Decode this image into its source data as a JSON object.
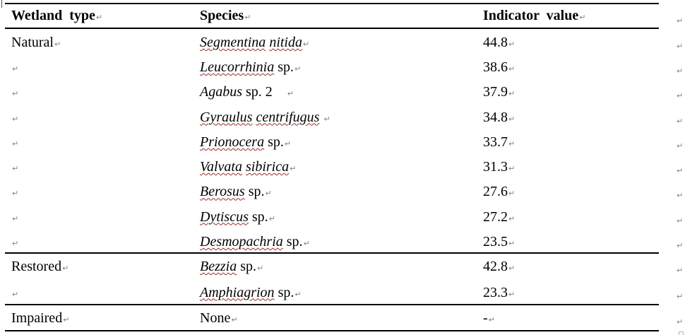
{
  "header": {
    "wetland_type": "Wetland type",
    "species": "Species",
    "indicator_value": "Indicator value"
  },
  "sections": [
    {
      "wetland_type": "Natural",
      "rows": [
        {
          "name": "Segmentina nitida",
          "rest": "",
          "value": "44.8"
        },
        {
          "name": "Leucorrhinia",
          "rest": " sp.",
          "value": "38.6"
        },
        {
          "name": "Agabus",
          "squiggle": false,
          "rest": " sp. 2",
          "trail": "    ",
          "value": "37.9"
        },
        {
          "name": "Gyraulus centrifugus",
          "rest": "",
          "trail": " ",
          "value": "34.8"
        },
        {
          "name": "Prionocera",
          "rest": " sp.",
          "value": "33.7"
        },
        {
          "name": "Valvata sibirica",
          "rest": "",
          "value": "31.3"
        },
        {
          "name": "Berosus",
          "rest": " sp.",
          "value": "27.6"
        },
        {
          "name": "Dytiscus",
          "rest": " sp.",
          "value": "27.2"
        },
        {
          "name": "Desmopachria",
          "rest": " sp.",
          "value": "23.5"
        }
      ]
    },
    {
      "wetland_type": "Restored",
      "rows": [
        {
          "name": "Bezzia",
          "rest": " sp.",
          "value": "42.8"
        },
        {
          "name": "Amphiagrion",
          "rest": " sp.",
          "value": "23.3"
        }
      ]
    },
    {
      "wetland_type": "Impaired",
      "rows": [
        {
          "name": "None",
          "italic": false,
          "squiggle": false,
          "rest": "",
          "value": "-"
        }
      ]
    }
  ],
  "marks": {
    "paragraph_mark": "↵"
  },
  "colors": {
    "squiggle": "#9b2d25",
    "mark": "#848484",
    "rule": "#000000"
  }
}
